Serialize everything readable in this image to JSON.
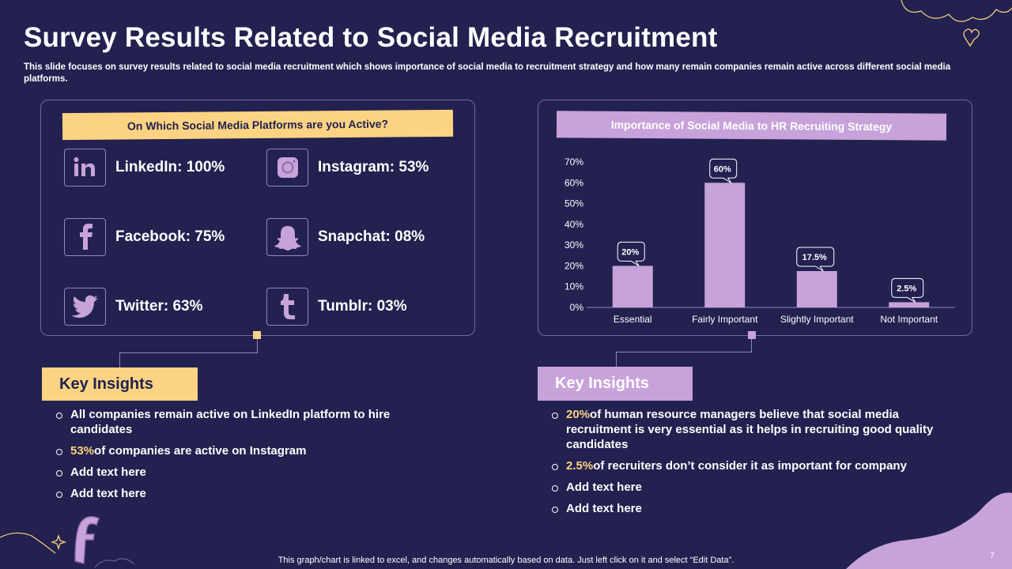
{
  "title": "Survey Results Related to Social Media Recruitment",
  "subtitle": "This slide focuses on survey results related to social media recruitment which shows importance of social media to recruitment strategy and how many remain companies remain active across different social media platforms.",
  "left_panel": {
    "heading": "On Which Social Media Platforms are you Active?",
    "platforms": [
      {
        "label": "LinkedIn: 100%",
        "icon": "linkedin-icon",
        "value": 100
      },
      {
        "label": "Instagram: 53%",
        "icon": "instagram-icon",
        "value": 53
      },
      {
        "label": "Facebook: 75%",
        "icon": "facebook-icon",
        "value": 75
      },
      {
        "label": "Snapchat: 08%",
        "icon": "snapchat-icon",
        "value": 8
      },
      {
        "label": "Twitter: 63%",
        "icon": "twitter-icon",
        "value": 63
      },
      {
        "label": "Tumblr: 03%",
        "icon": "tumblr-icon",
        "value": 3
      }
    ]
  },
  "right_panel": {
    "heading": "Importance of Social Media to HR Recruiting Strategy"
  },
  "chart_data": {
    "type": "bar",
    "title": "Importance of Social Media to HR Recruiting Strategy",
    "categories": [
      "Essential",
      "Fairly Important",
      "Slightly Important",
      "Not Important"
    ],
    "values": [
      20,
      60,
      17.5,
      2.5
    ],
    "data_labels": [
      "20%",
      "60%",
      "17.5%",
      "2.5%"
    ],
    "y_ticks": [
      "0%",
      "10%",
      "20%",
      "30%",
      "40%",
      "50%",
      "60%",
      "70%"
    ],
    "ylim": [
      0,
      70
    ],
    "xlabel": "",
    "ylabel": "",
    "grid": false,
    "bar_color": "#c8a2da"
  },
  "insights_left": {
    "heading": "Key Insights",
    "items": [
      {
        "highlight": "",
        "text": "All companies remain active on LinkedIn platform to hire candidates"
      },
      {
        "highlight": "53%",
        "text": "of companies are active on Instagram"
      },
      {
        "highlight": "",
        "text": "Add text here"
      },
      {
        "highlight": "",
        "text": "Add text here"
      }
    ]
  },
  "insights_right": {
    "heading": "Key Insights",
    "items": [
      {
        "highlight": "20%",
        "text": "of human resource managers believe that social media recruitment is very essential as it helps in recruiting good quality candidates"
      },
      {
        "highlight": "2.5%",
        "text": "of recruiters don’t consider it as important for company"
      },
      {
        "highlight": "",
        "text": "Add text here"
      },
      {
        "highlight": "",
        "text": "Add text here"
      }
    ]
  },
  "footer": "This graph/chart is linked to excel, and changes automatically based on data. Just left click on it and select “Edit Data”.",
  "page_number": "7",
  "colors": {
    "background": "#232150",
    "accent_yellow": "#fbd382",
    "accent_purple": "#c8a2da",
    "panel_border": "#6e6b9a"
  }
}
